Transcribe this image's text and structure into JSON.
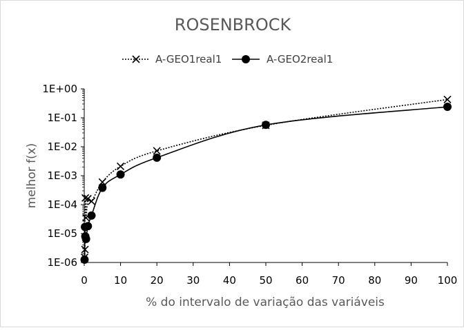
{
  "chart_data": {
    "type": "line",
    "title": "ROSENBROCK",
    "xlabel": "% do intervalo de variação das variáveis",
    "ylabel": "melhor f(x)",
    "xlim": [
      0,
      100
    ],
    "ylim": [
      1e-06,
      1
    ],
    "yscale": "log",
    "grid": false,
    "legend_position": "top",
    "x_ticks": [
      0,
      10,
      20,
      30,
      40,
      50,
      60,
      70,
      80,
      90,
      100
    ],
    "x_tick_labels": [
      "0",
      "10",
      "20",
      "30",
      "40",
      "50",
      "60",
      "70",
      "80",
      "90",
      "100"
    ],
    "y_ticks": [
      1e-06,
      1e-05,
      0.0001,
      0.001,
      0.01,
      0.1,
      1
    ],
    "y_tick_labels": [
      "1E-06",
      "1E-05",
      "1E-04",
      "1E-03",
      "1E-02",
      "1E-01",
      "1E+00"
    ],
    "series": [
      {
        "name": "A-GEO1real1",
        "marker": "x",
        "line_style": "dotted",
        "color": "#000000",
        "x": [
          0.1,
          0.2,
          0.3,
          0.5,
          1,
          2,
          5,
          10,
          20,
          50,
          100
        ],
        "y": [
          1.5e-06,
          2.8e-06,
          0.00017,
          3.5e-05,
          0.00016,
          0.00013,
          0.0006,
          0.0021,
          0.0072,
          0.055,
          0.43
        ]
      },
      {
        "name": "A-GEO2real1",
        "marker": "circle",
        "line_style": "solid",
        "color": "#000000",
        "x": [
          0.1,
          0.2,
          0.3,
          0.5,
          1,
          2,
          5,
          10,
          20,
          50,
          100
        ],
        "y": [
          1.25e-06,
          1.7e-05,
          8e-06,
          6.5e-06,
          1.8e-05,
          4.2e-05,
          0.00038,
          0.0011,
          0.0042,
          0.057,
          0.24
        ]
      }
    ]
  }
}
